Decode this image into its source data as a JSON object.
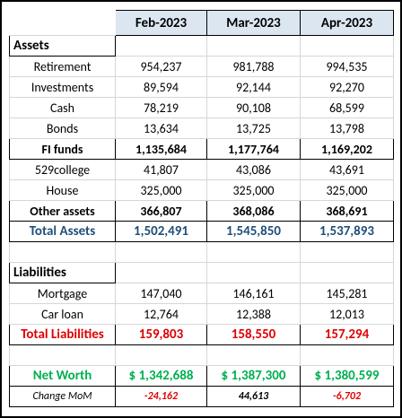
{
  "columns": [
    "Feb-2023",
    "Mar-2023",
    "Apr-2023"
  ],
  "rows": [
    {
      "label": "Assets"
    },
    {
      "label": "Retirement",
      "values": [
        "954,237",
        "981,788",
        "994,535"
      ]
    },
    {
      "label": "Investments",
      "values": [
        "89,594",
        "92,144",
        "92,270"
      ]
    },
    {
      "label": "Cash",
      "values": [
        "78,219",
        "90,108",
        "68,599"
      ]
    },
    {
      "label": "Bonds",
      "values": [
        "13,634",
        "13,725",
        "13,798"
      ]
    },
    {
      "label": "FI funds",
      "values": [
        "1,135,684",
        "1,177,764",
        "1,169,202"
      ]
    },
    {
      "label": "529college",
      "values": [
        "41,807",
        "43,086",
        "43,691"
      ]
    },
    {
      "label": "House",
      "values": [
        "325,000",
        "325,000",
        "325,000"
      ]
    },
    {
      "label": "Other assets",
      "values": [
        "366,807",
        "368,086",
        "368,691"
      ]
    },
    {
      "label": "Total Assets",
      "values": [
        "1,502,491",
        "1,545,850",
        "1,537,893"
      ]
    },
    {
      "label": "Liabilities"
    },
    {
      "label": "Mortgage",
      "values": [
        "147,040",
        "146,161",
        "145,281"
      ]
    },
    {
      "label": "Car loan",
      "values": [
        "12,764",
        "12,388",
        "12,013"
      ]
    },
    {
      "label": "Total Liabilities",
      "values": [
        "159,803",
        "158,550",
        "157,294"
      ]
    },
    {
      "label": "Net Worth",
      "values": [
        "$ 1,342,688",
        "$ 1,387,300",
        "$ 1,380,599"
      ]
    },
    {
      "label": "Change MoM",
      "values": [
        "-24,162",
        "44,613",
        "-6,702"
      ]
    }
  ]
}
